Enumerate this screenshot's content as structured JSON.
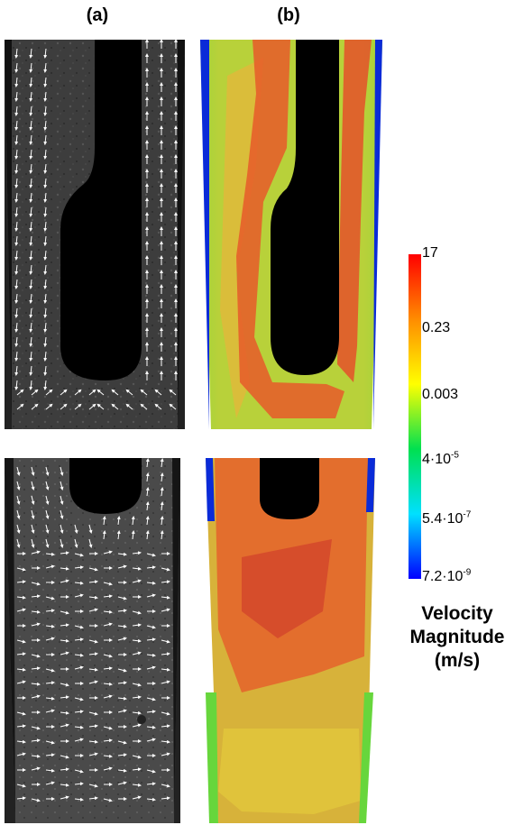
{
  "panels": {
    "left_label": "(a)",
    "right_label": "(b)"
  },
  "colorbar": {
    "ticks": [
      {
        "base": "17",
        "sup": ""
      },
      {
        "base": "0.23",
        "sup": ""
      },
      {
        "base": "0.003",
        "sup": ""
      },
      {
        "base": "4·10",
        "sup": "-5"
      },
      {
        "base": "5.4·10",
        "sup": "-7"
      },
      {
        "base": "7.2·10",
        "sup": "-9"
      }
    ],
    "title_line1": "Velocity",
    "title_line2": "Magnitude",
    "title_line3": "(m/s)",
    "colors": [
      "#ff0000",
      "#ff8c00",
      "#ffff00",
      "#00e050",
      "#00e0ff",
      "#0000ff"
    ]
  }
}
